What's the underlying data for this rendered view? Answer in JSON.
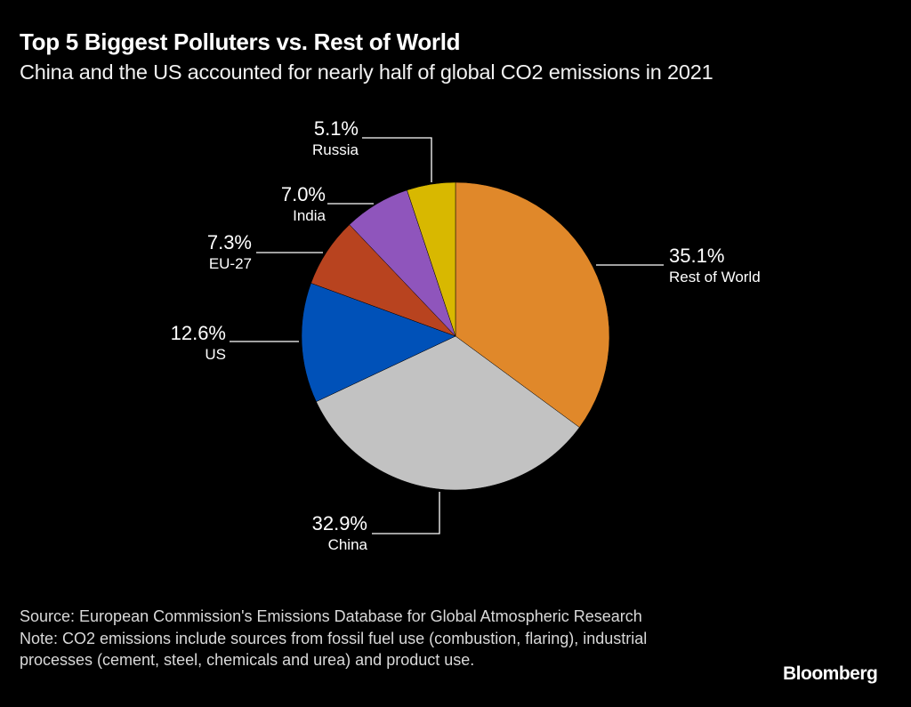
{
  "header": {
    "title": "Top 5 Biggest Polluters vs. Rest of World",
    "subtitle": "China and the US accounted for nearly half of global CO2 emissions in 2021"
  },
  "chart_data": {
    "type": "pie",
    "title": "Top 5 Biggest Polluters vs. Rest of World",
    "start_angle": "12 o'clock, clockwise",
    "slices": [
      {
        "name": "Rest of World",
        "value": 35.1,
        "label": "35.1%",
        "color": "#E0882A"
      },
      {
        "name": "China",
        "value": 32.9,
        "label": "32.9%",
        "color": "#C2C2C2"
      },
      {
        "name": "US",
        "value": 12.6,
        "label": "12.6%",
        "color": "#0051B8"
      },
      {
        "name": "EU-27",
        "value": 7.3,
        "label": "7.3%",
        "color": "#B8431F"
      },
      {
        "name": "India",
        "value": 7.0,
        "label": "7.0%",
        "color": "#8F55BC"
      },
      {
        "name": "Russia",
        "value": 5.1,
        "label": "5.1%",
        "color": "#D8B800"
      }
    ]
  },
  "footer": {
    "source": "Source: European Commission's Emissions Database for Global Atmospheric Research",
    "note": "Note: CO2 emissions include sources from fossil fuel use (combustion, flaring), industrial processes (cement, steel, chemicals and urea) and product use."
  },
  "brand": "Bloomberg"
}
